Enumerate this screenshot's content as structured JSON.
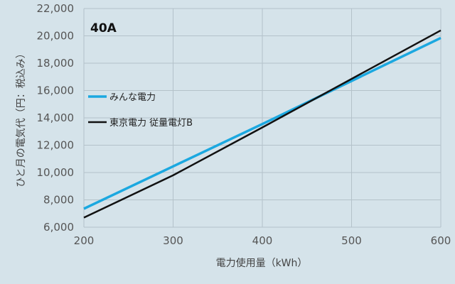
{
  "chart_data": {
    "type": "line",
    "title": "40A",
    "xlabel": "電力使用量（kWh）",
    "ylabel": "ひと月の電気代（円：税込み）",
    "xlim": [
      200,
      600
    ],
    "ylim": [
      6000,
      22000
    ],
    "x_ticks": [
      "200",
      "300",
      "400",
      "500",
      "600"
    ],
    "y_ticks": [
      "6,000",
      "8,000",
      "10,000",
      "12,000",
      "14,000",
      "16,000",
      "18,000",
      "20,000",
      "22,000"
    ],
    "x_tick_values": [
      200,
      300,
      400,
      500,
      600
    ],
    "y_tick_values": [
      6000,
      8000,
      10000,
      12000,
      14000,
      16000,
      18000,
      20000,
      22000
    ],
    "grid": true,
    "legend_position": "left-middle",
    "series": [
      {
        "name": "みんな電力",
        "color": "#1ba8e0",
        "x": [
          200,
          300,
          400,
          500,
          600
        ],
        "y": [
          7350,
          10450,
          13550,
          16700,
          19850
        ]
      },
      {
        "name": "東京電力 従量電灯B",
        "color": "#111111",
        "x": [
          200,
          300,
          400,
          500,
          600
        ],
        "y": [
          6700,
          9800,
          13300,
          16850,
          20400
        ]
      }
    ]
  }
}
